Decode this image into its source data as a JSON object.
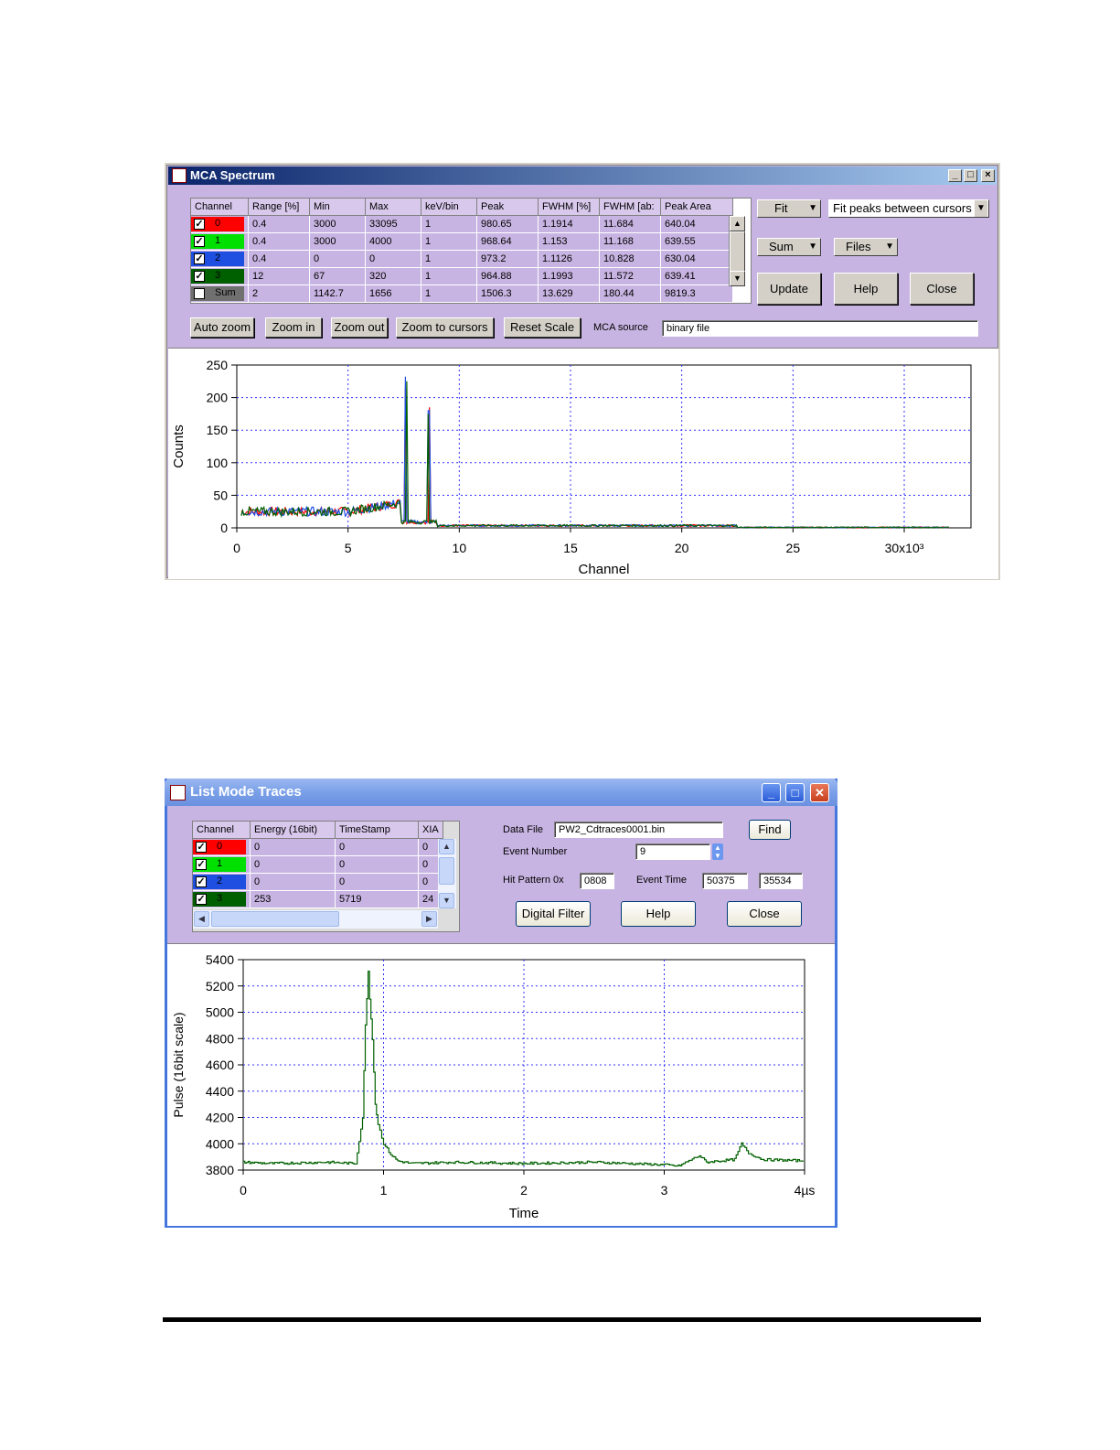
{
  "mca": {
    "title": "MCA Spectrum",
    "controls": {
      "minimize": "_",
      "maximize": "□",
      "close": "×"
    },
    "table": {
      "headers": [
        "Channel",
        "Range [%]",
        "Min",
        "Max",
        "keV/bin",
        "Peak",
        "FWHM [%]",
        "FWHM [ab:",
        "Peak Area"
      ],
      "rows": [
        {
          "channel": "0",
          "color": "#ff0000",
          "checked": true,
          "cells": [
            "0.4",
            "3000",
            "33095",
            "1",
            "980.65",
            "1.1914",
            "11.684",
            "640.04"
          ]
        },
        {
          "channel": "1",
          "color": "#00e000",
          "checked": true,
          "cells": [
            "0.4",
            "3000",
            "4000",
            "1",
            "968.64",
            "1.153",
            "11.168",
            "639.55"
          ]
        },
        {
          "channel": "2",
          "color": "#1f4fe0",
          "checked": true,
          "cells": [
            "0.4",
            "0",
            "0",
            "1",
            "973.2",
            "1.1126",
            "10.828",
            "630.04"
          ]
        },
        {
          "channel": "3",
          "color": "#006000",
          "checked": true,
          "cells": [
            "12",
            "67",
            "320",
            "1",
            "964.88",
            "1.1993",
            "11.572",
            "639.41"
          ]
        },
        {
          "channel": "Sum",
          "color": "#707070",
          "checked": false,
          "cells": [
            "2",
            "1142.7",
            "1656",
            "1",
            "1506.3",
            "13.629",
            "180.44",
            "9819.3"
          ]
        }
      ]
    },
    "buttons": {
      "fit": "Fit",
      "fit_mode": "Fit peaks between cursors",
      "sum": "Sum",
      "files": "Files",
      "update": "Update",
      "help": "Help",
      "close": "Close",
      "auto_zoom": "Auto zoom",
      "zoom_in": "Zoom in",
      "zoom_out": "Zoom out",
      "zoom_to_cursors": "Zoom to cursors",
      "reset_scale": "Reset Scale"
    },
    "source_label": "MCA  source",
    "source_value": "binary file",
    "chart_data": {
      "type": "line",
      "xlabel": "Channel",
      "ylabel": "Counts",
      "xlim": [
        0,
        33000
      ],
      "ylim": [
        0,
        250
      ],
      "x_ticks": [
        "0",
        "5",
        "10",
        "15",
        "20",
        "25",
        "30x10³"
      ],
      "y_ticks": [
        "0",
        "50",
        "100",
        "150",
        "200",
        "250"
      ],
      "grid": true,
      "series": [
        {
          "color": "#ff0000",
          "peaks": [
            [
              7600,
              215
            ],
            [
              8650,
              185
            ]
          ]
        },
        {
          "color": "#1f4fe0",
          "peaks": [
            [
              7580,
              232
            ],
            [
              8630,
              180
            ]
          ]
        },
        {
          "color": "#006000",
          "peaks": [
            [
              7620,
              225
            ],
            [
              8600,
              175
            ]
          ]
        }
      ]
    }
  },
  "lmt": {
    "title": "List Mode Traces",
    "table": {
      "headers": [
        "Channel",
        "Energy (16bit)",
        "TimeStamp",
        "XIA"
      ],
      "rows": [
        {
          "channel": "0",
          "color": "#ff0000",
          "cells": [
            "0",
            "0",
            "0"
          ]
        },
        {
          "channel": "1",
          "color": "#00e000",
          "cells": [
            "0",
            "0",
            "0"
          ]
        },
        {
          "channel": "2",
          "color": "#1f4fe0",
          "cells": [
            "0",
            "0",
            "0"
          ]
        },
        {
          "channel": "3",
          "color": "#006000",
          "cells": [
            "253",
            "5719",
            "24"
          ]
        }
      ]
    },
    "data_file_label": "Data File",
    "data_file": "PW2_Cdtraces0001.bin",
    "find": "Find",
    "event_number_label": "Event Number",
    "event_number": "9",
    "hit_pattern_label": "Hit Pattern 0x",
    "hit_pattern": "0808",
    "event_time_label": "Event Time",
    "event_time_1": "50375",
    "event_time_2": "35534",
    "buttons": {
      "digital_filter": "Digital Filter",
      "help": "Help",
      "close": "Close"
    },
    "chart_data": {
      "type": "line",
      "xlabel": "Time",
      "ylabel": "Pulse (16bit scale)",
      "xlim": [
        0,
        4
      ],
      "ylim": [
        3800,
        5400
      ],
      "x_ticks": [
        "0",
        "1",
        "2",
        "3",
        "4µs"
      ],
      "y_ticks": [
        "3800",
        "4000",
        "4200",
        "4400",
        "4600",
        "4800",
        "5000",
        "5200",
        "5400"
      ],
      "grid": true,
      "series": [
        {
          "color": "#006000",
          "x": [
            0,
            0.2,
            0.4,
            0.6,
            0.8,
            0.85,
            0.87,
            0.89,
            0.9,
            0.92,
            0.94,
            0.96,
            1.0,
            1.05,
            1.1,
            1.2,
            1.5,
            2.0,
            2.5,
            3.0,
            3.1,
            3.25,
            3.3,
            3.5,
            3.55,
            3.6,
            3.7,
            4.0
          ],
          "y": [
            3860,
            3850,
            3855,
            3860,
            3850,
            4200,
            4900,
            5320,
            5100,
            4800,
            4300,
            4150,
            4000,
            3920,
            3870,
            3850,
            3860,
            3850,
            3860,
            3840,
            3830,
            3910,
            3860,
            3880,
            4000,
            3930,
            3880,
            3870
          ]
        }
      ]
    }
  }
}
